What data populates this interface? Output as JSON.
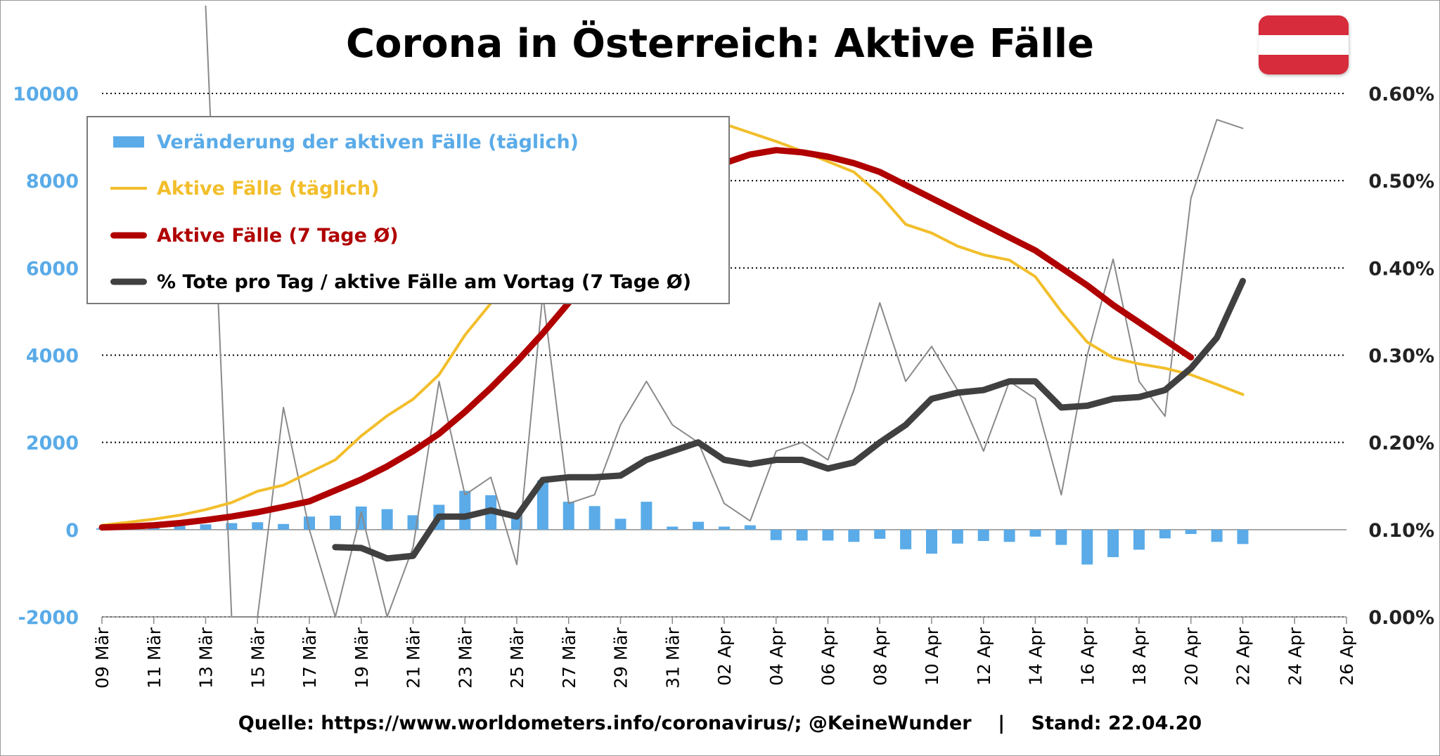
{
  "title": "Corona in Österreich: Aktive Fälle",
  "source": "Quelle: https://www.worldometers.info/coronavirus/; @KeineWunder    |    Stand: 22.04.20",
  "colors": {
    "bars": "#5aabe8",
    "active_daily": "#f2be2b",
    "active_avg7": "#b00000",
    "deaths_pct_avg7": "#404040",
    "deaths_pct_daily": "#8a8a8a",
    "left_axis": "#5aabe8",
    "flag_red": "#d62c3b"
  },
  "legend": [
    {
      "label": "Veränderung der aktiven Fälle (täglich)",
      "color": "#5aabe8",
      "kind": "bar"
    },
    {
      "label": "Aktive Fälle (täglich)",
      "color": "#f2be2b",
      "kind": "line-thin"
    },
    {
      "label": "Aktive Fälle (7 Tage Ø)",
      "color": "#b00000",
      "kind": "line-thick"
    },
    {
      "label": "% Tote pro Tag / aktive Fälle am Vortag (7 Tage Ø)",
      "color": "#000000",
      "kind": "line-dark"
    }
  ],
  "chart_data": {
    "type": "bar+line",
    "x_tick_labels": [
      "09 Mär",
      "11 Mär",
      "13 Mär",
      "15 Mär",
      "17 Mär",
      "19 Mär",
      "21 Mär",
      "23 Mär",
      "25 Mär",
      "27 Mär",
      "29 Mär",
      "31 Mär",
      "02 Apr",
      "04 Apr",
      "06 Apr",
      "08 Apr",
      "10 Apr",
      "12 Apr",
      "14 Apr",
      "16 Apr",
      "18 Apr",
      "20 Apr",
      "22 Apr",
      "24 Apr",
      "26 Apr"
    ],
    "x_range_days": [
      0,
      48
    ],
    "y_left": {
      "min": -2000,
      "max": 10000,
      "ticks": [
        -2000,
        0,
        2000,
        4000,
        6000,
        8000,
        10000
      ],
      "tick_labels": [
        "-2000",
        "0",
        "2000",
        "4000",
        "6000",
        "8000",
        "10000"
      ]
    },
    "y_right": {
      "min": 0,
      "max": 0.6,
      "ticks": [
        0,
        0.1,
        0.2,
        0.3,
        0.4,
        0.5,
        0.6
      ],
      "tick_labels": [
        "0.00%",
        "0.10%",
        "0.20%",
        "0.30%",
        "0.40%",
        "0.50%",
        "0.60%"
      ]
    },
    "grid": "horizontal dotted",
    "series": [
      {
        "name": "Veränderung der aktiven Fälle (täglich)",
        "type": "bar",
        "axis": "left",
        "values": [
          30,
          50,
          60,
          90,
          120,
          150,
          170,
          130,
          300,
          320,
          530,
          470,
          330,
          570,
          890,
          790,
          330,
          1130,
          640,
          540,
          250,
          640,
          70,
          180,
          70,
          100,
          -240,
          -250,
          -250,
          -280,
          -210,
          -450,
          -550,
          -320,
          -260,
          -280,
          -160,
          -350,
          -800,
          -630,
          -460,
          -200,
          -100,
          -280,
          -330
        ]
      },
      {
        "name": "Aktive Fälle (täglich)",
        "type": "line",
        "axis": "left",
        "values": [
          100,
          170,
          240,
          330,
          460,
          620,
          880,
          1020,
          1310,
          1600,
          2150,
          2610,
          2990,
          3550,
          4460,
          5190,
          5960,
          6870,
          7400,
          7950,
          8500,
          8950,
          9150,
          9250,
          9300,
          9100,
          8900,
          8680,
          8440,
          8200,
          7680,
          7000,
          6800,
          6500,
          6300,
          6180,
          5800,
          5000,
          4300,
          3940,
          3800,
          3700,
          3550,
          3330,
          3100
        ]
      },
      {
        "name": "Aktive Fälle (7 Tage Ø)",
        "type": "line",
        "axis": "left",
        "values": [
          50,
          70,
          100,
          150,
          220,
          300,
          400,
          520,
          650,
          900,
          1150,
          1450,
          1800,
          2200,
          2700,
          3250,
          3850,
          4500,
          5200,
          5900,
          6600,
          7150,
          7650,
          8000,
          8400,
          8600,
          8700,
          8650,
          8550,
          8400,
          8200,
          7900,
          7600,
          7300,
          7000,
          6700,
          6400,
          6000,
          5600,
          5150,
          4750,
          4350,
          3950,
          null,
          null
        ]
      },
      {
        "name": "% Tote pro Tag / aktive Fälle am Vortag (7 Tage Ø)",
        "type": "line",
        "axis": "right",
        "values": [
          null,
          null,
          null,
          null,
          null,
          null,
          null,
          null,
          null,
          0.08,
          0.079,
          0.067,
          0.07,
          0.115,
          0.115,
          0.122,
          0.115,
          0.157,
          0.16,
          0.16,
          0.162,
          0.18,
          0.19,
          0.2,
          0.18,
          0.175,
          0.18,
          0.18,
          0.17,
          0.177,
          0.2,
          0.22,
          0.25,
          0.257,
          0.26,
          0.27,
          0.27,
          0.24,
          0.242,
          0.25,
          0.252,
          0.26,
          0.285,
          0.32,
          0.385
        ]
      },
      {
        "name": "% Tote pro Tag / aktive Fälle am Vortag (täglich)",
        "type": "line",
        "axis": "right",
        "values": [
          null,
          null,
          null,
          null,
          0.7,
          0.0,
          0.0,
          0.24,
          0.1,
          0.0,
          0.12,
          0.0,
          0.08,
          0.27,
          0.14,
          0.16,
          0.06,
          0.37,
          0.13,
          0.14,
          0.22,
          0.27,
          0.22,
          0.2,
          0.13,
          0.11,
          0.19,
          0.2,
          0.18,
          0.26,
          0.36,
          0.27,
          0.31,
          0.26,
          0.19,
          0.27,
          0.25,
          0.14,
          0.3,
          0.41,
          0.27,
          0.23,
          0.48,
          0.57,
          0.56
        ]
      }
    ]
  }
}
